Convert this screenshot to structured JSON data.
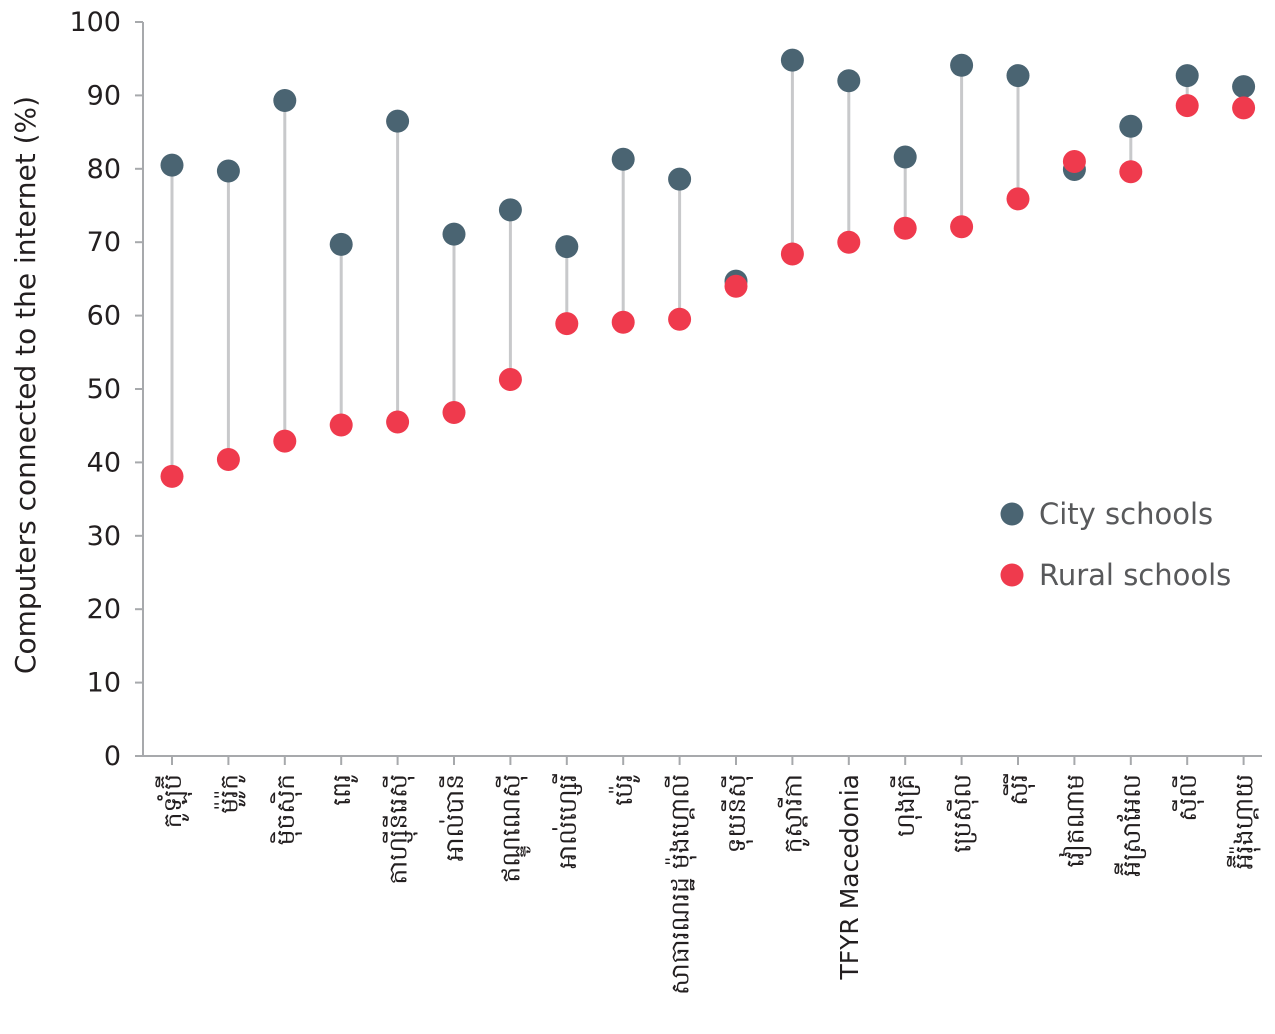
{
  "chart_data": {
    "type": "scatter",
    "ylabel": "Computers connected to the internet (%)",
    "xlabel": "",
    "ylim": [
      0,
      100
    ],
    "yticks": [
      0,
      10,
      20,
      30,
      40,
      50,
      60,
      70,
      80,
      90,
      100
    ],
    "grid": false,
    "legend_position": "right-middle",
    "categories": [
      "កូឡុំប៊ី",
      "ម៉ូរ៉ូកូ",
      "ម៉ិចស៊ិក",
      "ពេរូ",
      "តាហ្ស៊ីនីរេស៊ី",
      "អាល់បានី",
      "ឥណ្ឌូណេស៊ី",
      "អាល់ហ្សេរី",
      "ប៉េរូ",
      "សាធារណរដ្ឋ ម៉ុងហ្គោលី",
      "ទុយនីស៊ី",
      "កូស្តារីកា",
      "TFYR Macedonia",
      "ហុងគ្រី",
      "ប្រេស៊ីល",
      "ស៊ីរី",
      "វៀតណាម",
      "អ៊ីស្រាអែល",
      "ស៊ីលី",
      "អ៊ីរ៉ុងហ្គាយ"
    ],
    "series": [
      {
        "name": "City schools",
        "color": "#4a6472",
        "values": [
          80.5,
          79.7,
          89.3,
          69.7,
          86.5,
          71.1,
          74.4,
          69.4,
          81.3,
          78.6,
          64.7,
          94.8,
          92.0,
          81.6,
          94.1,
          92.7,
          79.9,
          85.8,
          92.7,
          91.2
        ]
      },
      {
        "name": "Rural schools",
        "color": "#ef3a4d",
        "values": [
          38.1,
          40.4,
          42.9,
          45.1,
          45.5,
          46.8,
          51.3,
          58.9,
          59.1,
          59.5,
          64.0,
          68.4,
          70.0,
          71.9,
          72.1,
          75.9,
          81.0,
          79.6,
          88.6,
          88.3
        ]
      }
    ],
    "connector_color": "#c8c9cb"
  }
}
